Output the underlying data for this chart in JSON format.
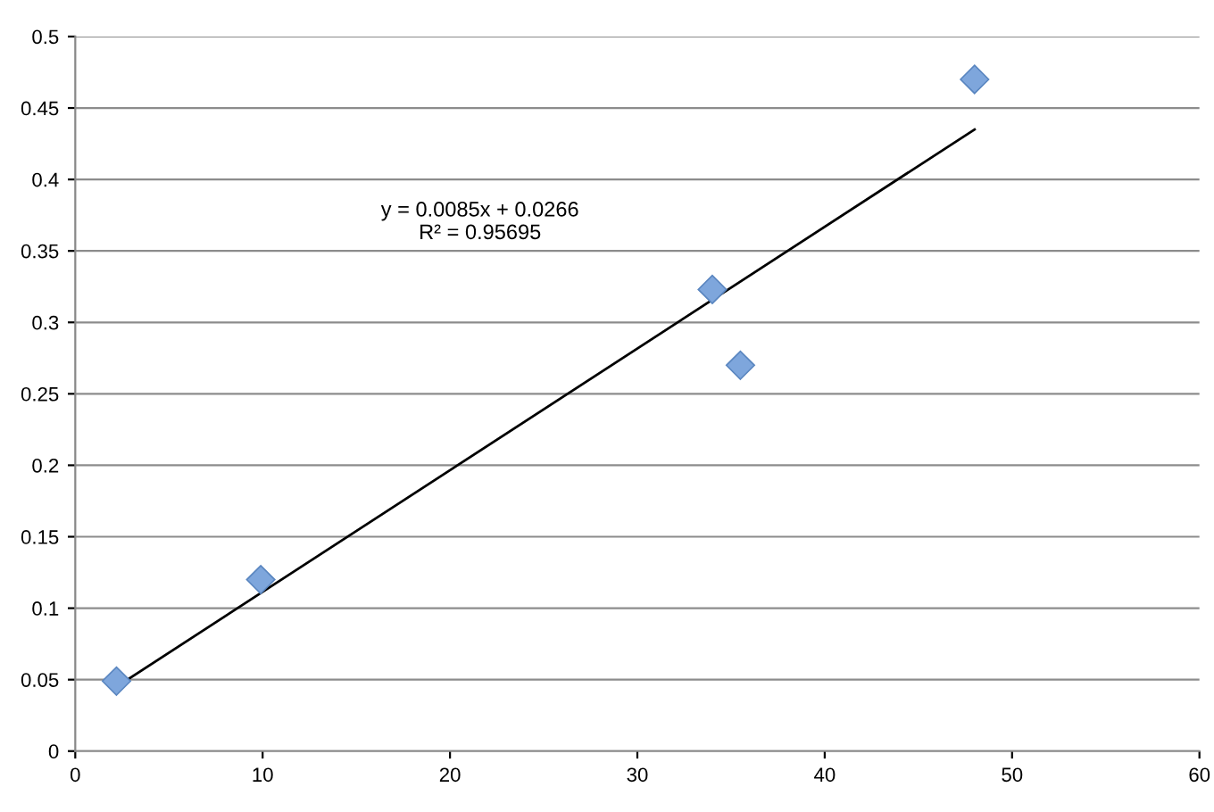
{
  "chart_data": {
    "type": "scatter",
    "x": [
      2.2,
      9.9,
      34.0,
      35.5,
      48.0
    ],
    "series": [
      {
        "color": "#7ea6dc",
        "marker": "diamond",
        "values": [
          0.049,
          0.12,
          0.323,
          0.27,
          0.47
        ]
      },
      {
        "type": "line",
        "color": "#000000",
        "marker": "none",
        "x": [
          2.2,
          48.0
        ],
        "values": [
          0.045,
          0.435
        ]
      }
    ],
    "annotations": [
      "y = 0.0085x + 0.0266\nR² = 0.95695"
    ],
    "xlim": [
      0,
      60
    ],
    "xticks": [
      0,
      10,
      20,
      30,
      40,
      50,
      60
    ],
    "ylim": [
      0,
      0.5
    ],
    "yticks": [
      0,
      0.05,
      0.1,
      0.15,
      0.2,
      0.25,
      0.3,
      0.35,
      0.4,
      0.45,
      0.5
    ],
    "grid": "y"
  }
}
